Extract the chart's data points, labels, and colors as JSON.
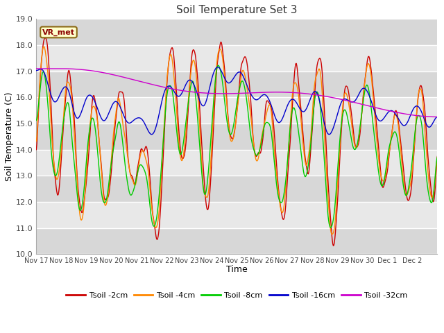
{
  "title": "Soil Temperature Set 3",
  "xlabel": "Time",
  "ylabel": "Soil Temperature (C)",
  "ylim": [
    10.0,
    19.0
  ],
  "yticks": [
    10.0,
    11.0,
    12.0,
    13.0,
    14.0,
    15.0,
    16.0,
    17.0,
    18.0,
    19.0
  ],
  "xtick_labels": [
    "Nov 17",
    "Nov 18",
    "Nov 19",
    "Nov 20",
    "Nov 21",
    "Nov 22",
    "Nov 23",
    "Nov 24",
    "Nov 25",
    "Nov 26",
    "Nov 27",
    "Nov 28",
    "Nov 29",
    "Nov 30",
    "Dec 1",
    "Dec 2"
  ],
  "n_days": 16,
  "ppd": 48,
  "legend_labels": [
    "Tsoil -2cm",
    "Tsoil -4cm",
    "Tsoil -8cm",
    "Tsoil -16cm",
    "Tsoil -32cm"
  ],
  "colors": [
    "#cc0000",
    "#ff8800",
    "#00cc00",
    "#0000cc",
    "#cc00cc"
  ],
  "line_width": 1.0,
  "annotation_text": "VR_met",
  "plot_bg_color": "#e8e8e8",
  "band_color": "#d0d0d0",
  "fig_bg_color": "#ffffff"
}
